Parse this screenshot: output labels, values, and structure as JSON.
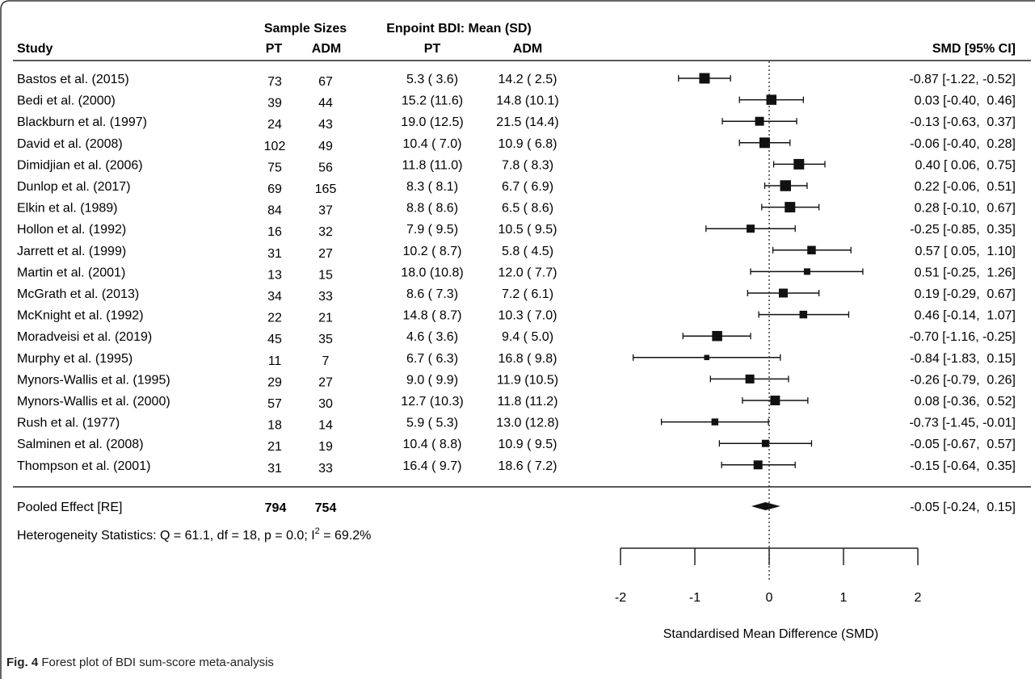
{
  "chart_data": {
    "type": "forest",
    "headers": {
      "study": "Study",
      "sample_sizes": "Sample Sizes",
      "endpoint": "Enpoint BDI: Mean (SD)",
      "pt": "PT",
      "adm": "ADM",
      "smd": "SMD [95% CI]"
    },
    "studies": [
      {
        "name": "Bastos et al. (2015)",
        "n_pt": "73",
        "n_adm": "67",
        "pt": "5.3 ( 3.6)",
        "adm": "14.2 ( 2.5)",
        "smd": -0.87,
        "lo": -1.22,
        "hi": -0.52,
        "label": "-0.87 [-1.22, -0.52]",
        "weight": 1.0
      },
      {
        "name": "Bedi et al. (2000)",
        "n_pt": "39",
        "n_adm": "44",
        "pt": "15.2 (11.6)",
        "adm": "14.8 (10.1)",
        "smd": 0.03,
        "lo": -0.4,
        "hi": 0.46,
        "label": "0.03 [-0.40,  0.46]",
        "weight": 0.95
      },
      {
        "name": "Blackburn et al. (1997)",
        "n_pt": "24",
        "n_adm": "43",
        "pt": "19.0 (12.5)",
        "adm": "21.5 (14.4)",
        "smd": -0.13,
        "lo": -0.63,
        "hi": 0.37,
        "label": "-0.13 [-0.63,  0.37]",
        "weight": 0.8
      },
      {
        "name": "David et al. (2008)",
        "n_pt": "102",
        "n_adm": "49",
        "pt": "10.4 ( 7.0)",
        "adm": "10.9 ( 6.8)",
        "smd": -0.06,
        "lo": -0.4,
        "hi": 0.28,
        "label": "-0.06 [-0.40,  0.28]",
        "weight": 1.0
      },
      {
        "name": "Dimidjian et al. (2006)",
        "n_pt": "75",
        "n_adm": "56",
        "pt": "11.8 (11.0)",
        "adm": "7.8 ( 8.3)",
        "smd": 0.4,
        "lo": 0.06,
        "hi": 0.75,
        "label": "0.40 [ 0.06,  0.75]",
        "weight": 1.0
      },
      {
        "name": "Dunlop et al. (2017)",
        "n_pt": "69",
        "n_adm": "165",
        "pt": "8.3 ( 8.1)",
        "adm": "6.7 ( 6.9)",
        "smd": 0.22,
        "lo": -0.06,
        "hi": 0.51,
        "label": "0.22 [-0.06,  0.51]",
        "weight": 1.05
      },
      {
        "name": "Elkin et al. (1989)",
        "n_pt": "84",
        "n_adm": "37",
        "pt": "8.8 ( 8.6)",
        "adm": "6.5 ( 8.6)",
        "smd": 0.28,
        "lo": -0.1,
        "hi": 0.67,
        "label": "0.28 [-0.10,  0.67]",
        "weight": 1.0
      },
      {
        "name": "Hollon et al. (1992)",
        "n_pt": "16",
        "n_adm": "32",
        "pt": "7.9 ( 9.5)",
        "adm": "10.5 ( 9.5)",
        "smd": -0.25,
        "lo": -0.85,
        "hi": 0.35,
        "label": "-0.25 [-0.85,  0.35]",
        "weight": 0.7
      },
      {
        "name": "Jarrett et al. (1999)",
        "n_pt": "31",
        "n_adm": "27",
        "pt": "10.2 ( 8.7)",
        "adm": "5.8 ( 4.5)",
        "smd": 0.57,
        "lo": 0.05,
        "hi": 1.1,
        "label": "0.57 [ 0.05,  1.10]",
        "weight": 0.75
      },
      {
        "name": "Martin et al. (2001)",
        "n_pt": "13",
        "n_adm": "15",
        "pt": "18.0 (10.8)",
        "adm": "12.0 ( 7.7)",
        "smd": 0.51,
        "lo": -0.25,
        "hi": 1.26,
        "label": "0.51 [-0.25,  1.26]",
        "weight": 0.5
      },
      {
        "name": "McGrath et al. (2013)",
        "n_pt": "34",
        "n_adm": "33",
        "pt": "8.6 ( 7.3)",
        "adm": "7.2 ( 6.1)",
        "smd": 0.19,
        "lo": -0.29,
        "hi": 0.67,
        "label": "0.19 [-0.29,  0.67]",
        "weight": 0.8
      },
      {
        "name": "McKnight et al. (1992)",
        "n_pt": "22",
        "n_adm": "21",
        "pt": "14.8 ( 8.7)",
        "adm": "10.3 ( 7.0)",
        "smd": 0.46,
        "lo": -0.14,
        "hi": 1.07,
        "label": "0.46 [-0.14,  1.07]",
        "weight": 0.65
      },
      {
        "name": "Moradveisi et al. (2019)",
        "n_pt": "45",
        "n_adm": "35",
        "pt": "4.6 ( 3.6)",
        "adm": "9.4 ( 5.0)",
        "smd": -0.7,
        "lo": -1.16,
        "hi": -0.25,
        "label": "-0.70 [-1.16, -0.25]",
        "weight": 0.95
      },
      {
        "name": "Murphy et al. (1995)",
        "n_pt": "11",
        "n_adm": "7",
        "pt": "6.7 ( 6.3)",
        "adm": "16.8 ( 9.8)",
        "smd": -0.84,
        "lo": -1.83,
        "hi": 0.15,
        "label": "-0.84 [-1.83,  0.15]",
        "weight": 0.35
      },
      {
        "name": "Mynors-Wallis et al. (1995)",
        "n_pt": "29",
        "n_adm": "27",
        "pt": "9.0 ( 9.9)",
        "adm": "11.9 (10.5)",
        "smd": -0.26,
        "lo": -0.79,
        "hi": 0.26,
        "label": "-0.26 [-0.79,  0.26]",
        "weight": 0.8
      },
      {
        "name": "Mynors-Wallis et al. (2000)",
        "n_pt": "57",
        "n_adm": "30",
        "pt": "12.7 (10.3)",
        "adm": "11.8 (11.2)",
        "smd": 0.08,
        "lo": -0.36,
        "hi": 0.52,
        "label": "0.08 [-0.36,  0.52]",
        "weight": 0.9
      },
      {
        "name": "Rush et al. (1977)",
        "n_pt": "18",
        "n_adm": "14",
        "pt": "5.9 ( 5.3)",
        "adm": "13.0 (12.8)",
        "smd": -0.73,
        "lo": -1.45,
        "hi": -0.01,
        "label": "-0.73 [-1.45, -0.01]",
        "weight": 0.55
      },
      {
        "name": "Salminen et al. (2008)",
        "n_pt": "21",
        "n_adm": "19",
        "pt": "10.4 ( 8.8)",
        "adm": "10.9 ( 9.5)",
        "smd": -0.05,
        "lo": -0.67,
        "hi": 0.57,
        "label": "-0.05 [-0.67,  0.57]",
        "weight": 0.6
      },
      {
        "name": "Thompson et al. (2001)",
        "n_pt": "31",
        "n_adm": "33",
        "pt": "16.4 ( 9.7)",
        "adm": "18.6 ( 7.2)",
        "smd": -0.15,
        "lo": -0.64,
        "hi": 0.35,
        "label": "-0.15 [-0.64,  0.35]",
        "weight": 0.8
      }
    ],
    "pooled": {
      "name": "Pooled Effect [RE]",
      "n_pt": "794",
      "n_adm": "754",
      "smd": -0.05,
      "lo": -0.24,
      "hi": 0.15,
      "label": "-0.05 [-0.24,  0.15]"
    },
    "heterogeneity": {
      "prefix": "Heterogeneity Statistics: Q = 61.1, df = 18, p = 0.0; I",
      "sup": "2",
      "suffix": " = 69.2%"
    },
    "xaxis": {
      "ticks": [
        -2,
        -1,
        0,
        1,
        2
      ],
      "tick_labels": [
        "-2",
        "-1",
        "0",
        "1",
        "2"
      ],
      "xlim": [
        -2,
        2
      ],
      "label": "Standardised Mean Difference (SMD)",
      "reference_line": 0
    }
  },
  "caption": {
    "prefix": "Fig. 4",
    "text": " Forest plot of BDI sum-score meta-analysis"
  },
  "colors": {
    "marker": "#111111",
    "text": "#111111",
    "frame": "#333333"
  }
}
